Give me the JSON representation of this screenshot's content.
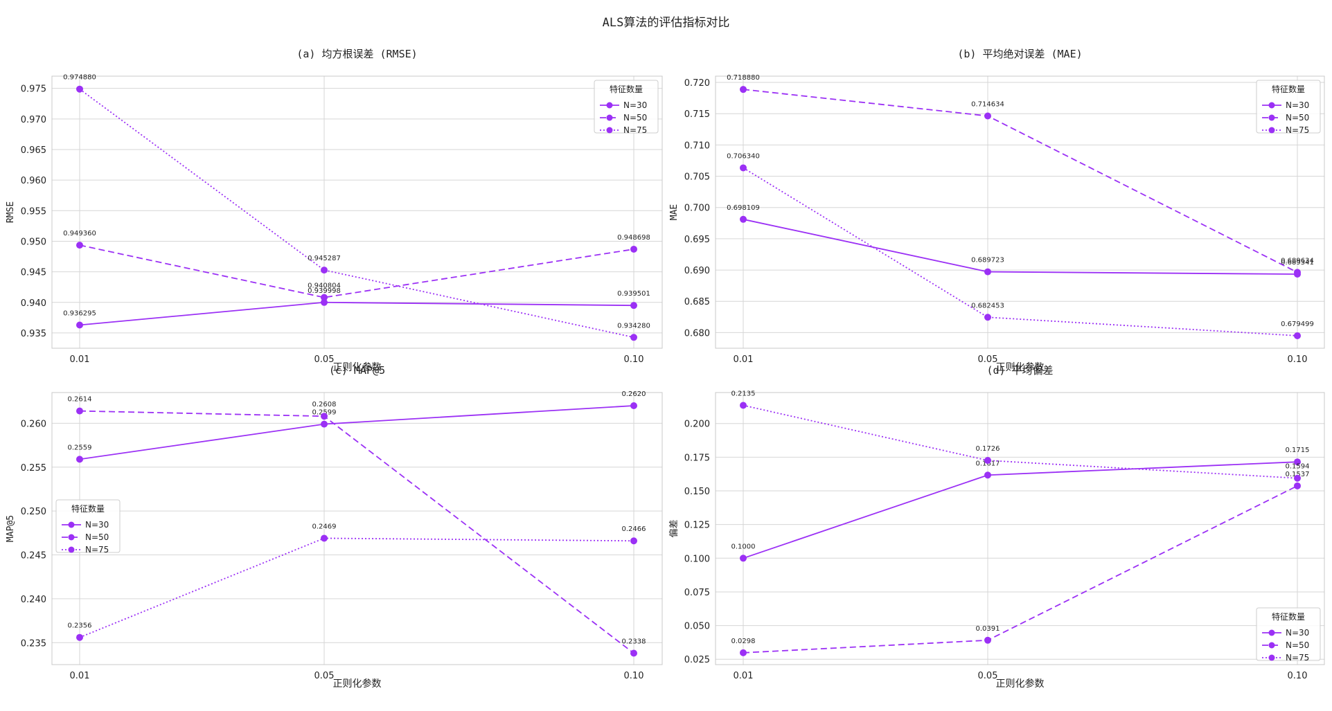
{
  "figure": {
    "title": "ALS算法的评估指标对比"
  },
  "style": {
    "line_color": "#9b30f5",
    "grid_color": "#d6d6d6",
    "frame_color": "#c8c8c8"
  },
  "chart_data": [
    {
      "type": "line",
      "title": "(a) 均方根误差 (RMSE)",
      "xlabel": "正则化参数",
      "ylabel": "RMSE",
      "categories": [
        "0.01",
        "0.05",
        "0.10"
      ],
      "ylim": [
        0.9325,
        0.977
      ],
      "yticks": [
        "0.935",
        "0.940",
        "0.945",
        "0.950",
        "0.955",
        "0.960",
        "0.965",
        "0.970",
        "0.975"
      ],
      "legend": {
        "title": "特征数量",
        "position": "top-right"
      },
      "series": [
        {
          "name": "N=30",
          "dash": "solid",
          "values": [
            0.936295,
            0.939998,
            0.939501
          ],
          "labels": [
            "0.936295",
            "0.939998",
            "0.939501"
          ]
        },
        {
          "name": "N=50",
          "dash": "dashed",
          "values": [
            0.94936,
            0.940804,
            0.948698
          ],
          "labels": [
            "0.949360",
            "0.940804",
            "0.948698"
          ]
        },
        {
          "name": "N=75",
          "dash": "dotted",
          "values": [
            0.97488,
            0.945287,
            0.93428
          ],
          "labels": [
            "0.974880",
            "0.945287",
            "0.934280"
          ]
        }
      ]
    },
    {
      "type": "line",
      "title": "(b) 平均绝对误差 (MAE)",
      "xlabel": "正则化参数",
      "ylabel": "MAE",
      "categories": [
        "0.01",
        "0.05",
        "0.10"
      ],
      "ylim": [
        0.6775,
        0.721
      ],
      "yticks": [
        "0.680",
        "0.685",
        "0.690",
        "0.695",
        "0.700",
        "0.705",
        "0.710",
        "0.715",
        "0.720"
      ],
      "legend": {
        "title": "特征数量",
        "position": "top-right"
      },
      "series": [
        {
          "name": "N=30",
          "dash": "solid",
          "values": [
            0.698109,
            0.689723,
            0.689341
          ],
          "labels": [
            "0.698109",
            "0.689723",
            "0.689341"
          ]
        },
        {
          "name": "N=50",
          "dash": "dashed",
          "values": [
            0.71888,
            0.714634,
            0.689634
          ],
          "labels": [
            "0.718880",
            "0.714634",
            "0.689634"
          ]
        },
        {
          "name": "N=75",
          "dash": "dotted",
          "values": [
            0.70634,
            0.682453,
            0.679499
          ],
          "labels": [
            "0.706340",
            "0.682453",
            "0.679499"
          ]
        }
      ]
    },
    {
      "type": "line",
      "title": "(c) MAP@5",
      "xlabel": "正则化参数",
      "ylabel": "MAP@5",
      "categories": [
        "0.01",
        "0.05",
        "0.10"
      ],
      "ylim": [
        0.2325,
        0.2635
      ],
      "yticks": [
        "0.235",
        "0.240",
        "0.245",
        "0.250",
        "0.255",
        "0.260"
      ],
      "legend": {
        "title": "特征数量",
        "position": "center-left"
      },
      "series": [
        {
          "name": "N=30",
          "dash": "solid",
          "values": [
            0.2559,
            0.2599,
            0.262
          ],
          "labels": [
            "0.2559",
            "0.2599",
            "0.2620"
          ]
        },
        {
          "name": "N=50",
          "dash": "dashed",
          "values": [
            0.2614,
            0.2608,
            0.2338
          ],
          "labels": [
            "0.2614",
            "0.2608",
            "0.2338"
          ]
        },
        {
          "name": "N=75",
          "dash": "dotted",
          "values": [
            0.2356,
            0.2469,
            0.2466
          ],
          "labels": [
            "0.2356",
            "0.2469",
            "0.2466"
          ]
        }
      ]
    },
    {
      "type": "line",
      "title": "(d) 平均偏差",
      "xlabel": "正则化参数",
      "ylabel": "偏差",
      "categories": [
        "0.01",
        "0.05",
        "0.10"
      ],
      "ylim": [
        0.021,
        0.223
      ],
      "yticks": [
        "0.025",
        "0.050",
        "0.075",
        "0.100",
        "0.125",
        "0.150",
        "0.175",
        "0.200"
      ],
      "legend": {
        "title": "特征数量",
        "position": "bottom-right"
      },
      "series": [
        {
          "name": "N=30",
          "dash": "solid",
          "values": [
            0.1,
            0.1617,
            0.1715
          ],
          "labels": [
            "0.1000",
            "0.1617",
            "0.1715"
          ]
        },
        {
          "name": "N=50",
          "dash": "dashed",
          "values": [
            0.0298,
            0.0391,
            0.1537
          ],
          "labels": [
            "0.0298",
            "0.0391",
            "0.1537"
          ]
        },
        {
          "name": "N=75",
          "dash": "dotted",
          "values": [
            0.2135,
            0.1726,
            0.1594
          ],
          "labels": [
            "0.2135",
            "0.1726",
            "0.1594"
          ]
        }
      ]
    }
  ]
}
